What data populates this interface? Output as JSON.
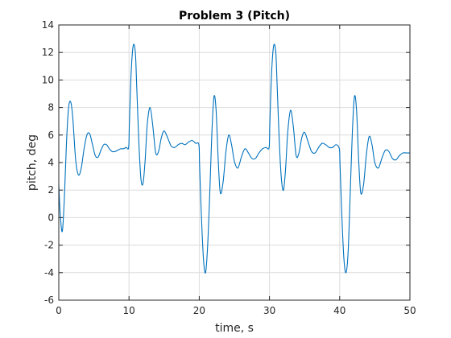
{
  "chart_data": {
    "type": "line",
    "title": "Problem 3 (Pitch)",
    "xlabel": "time, s",
    "ylabel": "pitch, deg",
    "xlim": [
      0,
      50
    ],
    "ylim": [
      -6,
      14
    ],
    "xticks": [
      0,
      10,
      20,
      30,
      40,
      50
    ],
    "yticks": [
      -6,
      -4,
      -2,
      0,
      2,
      4,
      6,
      8,
      10,
      12,
      14
    ],
    "xtick_labels": [
      "0",
      "10",
      "20",
      "30",
      "40",
      "50"
    ],
    "ytick_labels": [
      "-6",
      "-4",
      "-2",
      "0",
      "2",
      "4",
      "6",
      "8",
      "10",
      "12",
      "14"
    ],
    "grid": true,
    "series": [
      {
        "color": "#0072bd",
        "x": [
          0,
          0.2,
          0.5,
          0.8,
          1.1,
          1.4,
          1.7,
          2.0,
          2.4,
          2.8,
          3.2,
          3.6,
          4.0,
          4.4,
          4.8,
          5.2,
          5.6,
          6.0,
          6.4,
          6.8,
          7.2,
          7.6,
          8.0,
          8.4,
          8.8,
          9.2,
          9.6,
          9.95,
          10.05,
          10.3,
          10.6,
          10.9,
          11.1,
          11.4,
          11.7,
          12.0,
          12.3,
          12.6,
          13.0,
          13.4,
          13.8,
          14.2,
          14.6,
          15.0,
          15.5,
          16.0,
          16.5,
          17.0,
          17.5,
          18.0,
          18.5,
          19.0,
          19.5,
          19.95,
          20.05,
          20.3,
          20.6,
          20.9,
          21.2,
          21.5,
          21.8,
          22.1,
          22.4,
          22.7,
          23.0,
          23.4,
          23.8,
          24.2,
          24.6,
          25.0,
          25.5,
          26.0,
          26.5,
          27.0,
          27.5,
          28.0,
          28.5,
          29.0,
          29.5,
          29.95,
          30.05,
          30.3,
          30.6,
          30.9,
          31.1,
          31.4,
          31.7,
          32.0,
          32.3,
          32.6,
          33.0,
          33.4,
          33.8,
          34.2,
          34.6,
          35.0,
          35.5,
          36.0,
          36.5,
          37.0,
          37.5,
          38.0,
          38.5,
          39.0,
          39.5,
          39.95,
          40.05,
          40.3,
          40.6,
          40.9,
          41.2,
          41.5,
          41.8,
          42.1,
          42.4,
          42.7,
          43.0,
          43.4,
          43.8,
          44.2,
          44.6,
          45.0,
          45.5,
          46.0,
          46.5,
          47.0,
          47.5,
          48.0,
          48.5,
          49.0,
          49.5,
          50.0
        ],
        "y": [
          2.4,
          0.3,
          -1.0,
          1.5,
          5.5,
          8.0,
          8.4,
          7.2,
          4.2,
          3.1,
          3.6,
          5.0,
          6.0,
          6.1,
          5.3,
          4.5,
          4.4,
          4.9,
          5.3,
          5.3,
          5.0,
          4.8,
          4.8,
          4.9,
          5.0,
          5.0,
          5.1,
          5.1,
          6.8,
          10.5,
          12.5,
          12.0,
          9.5,
          5.5,
          2.8,
          2.5,
          4.2,
          6.8,
          8.0,
          6.6,
          4.7,
          4.8,
          5.8,
          6.3,
          5.8,
          5.2,
          5.1,
          5.3,
          5.4,
          5.3,
          5.5,
          5.6,
          5.4,
          5.3,
          3.8,
          0.2,
          -3.0,
          -4.0,
          -2.0,
          1.8,
          6.2,
          8.8,
          7.8,
          4.2,
          1.8,
          2.6,
          4.8,
          6.0,
          5.3,
          4.1,
          3.6,
          4.4,
          5.0,
          4.7,
          4.3,
          4.3,
          4.7,
          5.0,
          5.1,
          5.1,
          6.8,
          10.5,
          12.5,
          12.0,
          9.5,
          5.5,
          2.8,
          2.0,
          3.6,
          6.2,
          7.8,
          6.6,
          4.5,
          4.7,
          5.8,
          6.2,
          5.5,
          4.8,
          4.7,
          5.1,
          5.4,
          5.3,
          5.1,
          5.1,
          5.3,
          5.0,
          3.8,
          0.2,
          -3.0,
          -4.0,
          -2.5,
          1.8,
          6.2,
          8.8,
          7.8,
          4.2,
          1.8,
          2.4,
          4.6,
          5.9,
          5.3,
          4.0,
          3.6,
          4.3,
          4.9,
          4.8,
          4.3,
          4.2,
          4.5,
          4.7,
          4.7,
          4.7
        ]
      }
    ]
  }
}
